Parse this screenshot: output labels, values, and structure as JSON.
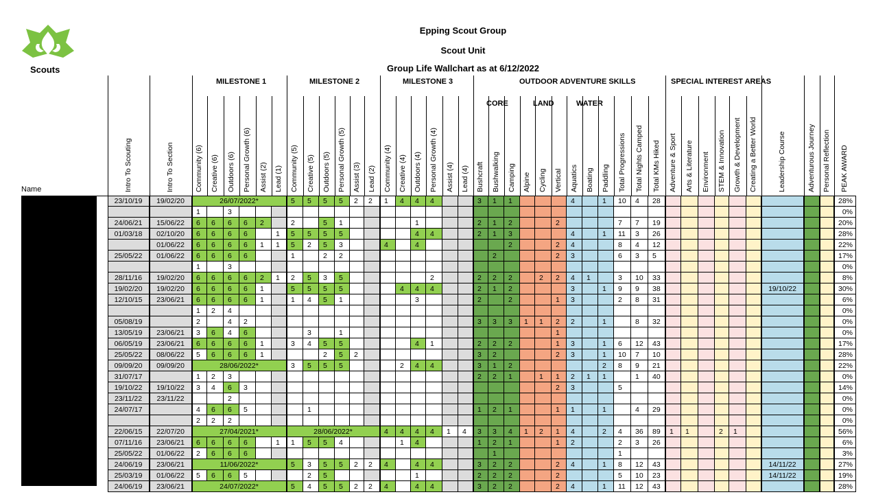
{
  "header": {
    "org": "Epping Scout Group",
    "unit": "Scout Unit",
    "title": "Group Life Wallchart as at 6/12/2022",
    "logo_text": "Scouts"
  },
  "groups": {
    "m1": "MILESTONE 1",
    "m2": "MILESTONE 2",
    "m3": "MILESTONE 3",
    "oas": "OUTDOOR ADVENTURE SKILLS",
    "sia": "SPECIAL INTEREST AREAS",
    "core": "CORE",
    "land": "LAND",
    "water": "WATER"
  },
  "name_header": "Name",
  "colors": {
    "green": "#92d050",
    "dark_green": "#6aa84f",
    "orange": "#f4a582",
    "blue": "#b9dcea",
    "pink": "#fbe1e1",
    "yellow": "#fff3c8",
    "grey": "#dcdcdc"
  },
  "columns": [
    "Intro To Scouting",
    "Intro To Section",
    "Community (6)",
    "Creative (6)",
    "Outdoors (6)",
    "Personal Growth (6)",
    "Assist (2)",
    "Lead (1)",
    "Community (5)",
    "Creative (5)",
    "Outdoors (5)",
    "Personal Growth (5)",
    "Assist (3)",
    "Lead (2)",
    "Community (4)",
    "Creative (4)",
    "Outdoors (4)",
    "Personal Growth (4)",
    "Assist (4)",
    "Lead (4)",
    "Bushcraft",
    "Bushwalking",
    "Camping",
    "Alpine",
    "Cycling",
    "Vertical",
    "Aquatics",
    "Boating",
    "Paddling",
    "Total Progressions",
    "Total Nights Camped",
    "Total KMs Hiked",
    "Adventure & Sport",
    "Arts & Literature",
    "Environment",
    "STEM & Innovation",
    "Growth & Development",
    "Creating a Better World",
    "Leadership Course",
    "Adventurous Journey",
    "Personal Reflection",
    "PEAK AWARD"
  ],
  "rows": [
    [
      "23/10/19",
      "19/02/20",
      "",
      "",
      "",
      "",
      "",
      "",
      "5",
      "5",
      "5",
      "5",
      "2",
      "2",
      "1",
      "4",
      "4",
      "4",
      "",
      "",
      "3",
      "1",
      "1",
      "",
      "",
      "",
      "4",
      "",
      "1",
      "10",
      "4",
      "28",
      "",
      "",
      "",
      "",
      "",
      "",
      "",
      "",
      "",
      "28%"
    ],
    [
      "",
      "",
      "1",
      "",
      "3",
      "",
      "",
      "",
      "",
      "",
      "",
      "",
      "",
      "",
      "",
      "",
      "",
      "",
      "",
      "",
      "",
      "",
      "",
      "",
      "",
      "",
      "",
      "",
      "",
      "",
      "",
      "",
      "",
      "",
      "",
      "",
      "",
      "",
      "",
      "",
      "",
      "0%"
    ],
    [
      "24/06/21",
      "15/06/22",
      "6",
      "6",
      "6",
      "6",
      "2",
      "",
      "2",
      "",
      "5",
      "1",
      "",
      "",
      "",
      "",
      "1",
      "",
      "",
      "",
      "2",
      "1",
      "2",
      "",
      "",
      "2",
      "",
      "",
      "",
      "7",
      "7",
      "19",
      "",
      "",
      "",
      "",
      "",
      "",
      "",
      "",
      "",
      "20%"
    ],
    [
      "01/03/18",
      "02/10/20",
      "6",
      "6",
      "6",
      "6",
      "",
      "1",
      "5",
      "5",
      "5",
      "5",
      "",
      "",
      "",
      "",
      "4",
      "4",
      "",
      "",
      "2",
      "1",
      "3",
      "",
      "",
      "",
      "4",
      "",
      "1",
      "11",
      "3",
      "26",
      "",
      "",
      "",
      "",
      "",
      "",
      "",
      "",
      "",
      "28%"
    ],
    [
      "",
      "01/06/22",
      "6",
      "6",
      "6",
      "6",
      "1",
      "1",
      "5",
      "2",
      "5",
      "3",
      "",
      "",
      "4",
      "",
      "4",
      "",
      "",
      "",
      "",
      "",
      "2",
      "",
      "",
      "2",
      "4",
      "",
      "",
      "8",
      "4",
      "12",
      "",
      "",
      "",
      "",
      "",
      "",
      "",
      "",
      "",
      "22%"
    ],
    [
      "25/05/22",
      "01/06/22",
      "6",
      "6",
      "6",
      "6",
      "",
      "",
      "1",
      "",
      "2",
      "2",
      "",
      "",
      "",
      "",
      "",
      "",
      "",
      "",
      "",
      "2",
      "",
      "",
      "",
      "2",
      "3",
      "",
      "",
      "6",
      "3",
      "5",
      "",
      "",
      "",
      "",
      "",
      "",
      "",
      "",
      "",
      "17%"
    ],
    [
      "",
      "",
      "1",
      "",
      "3",
      "",
      "",
      "",
      "",
      "",
      "",
      "",
      "",
      "",
      "",
      "",
      "",
      "",
      "",
      "",
      "",
      "",
      "",
      "",
      "",
      "",
      "",
      "",
      "",
      "",
      "",
      "",
      "",
      "",
      "",
      "",
      "",
      "",
      "",
      "",
      "",
      "0%"
    ],
    [
      "28/11/16",
      "19/02/20",
      "6",
      "6",
      "6",
      "6",
      "2",
      "1",
      "2",
      "5",
      "3",
      "5",
      "",
      "",
      "",
      "",
      "",
      "2",
      "",
      "",
      "2",
      "2",
      "2",
      "",
      "2",
      "2",
      "4",
      "1",
      "",
      "3",
      "10",
      "33",
      "",
      "",
      "",
      "",
      "",
      "",
      "",
      "",
      "",
      "8%"
    ],
    [
      "19/02/20",
      "19/02/20",
      "6",
      "6",
      "6",
      "6",
      "1",
      "",
      "5",
      "5",
      "5",
      "5",
      "",
      "",
      "",
      "4",
      "4",
      "4",
      "",
      "",
      "2",
      "1",
      "2",
      "",
      "",
      "",
      "3",
      "",
      "1",
      "9",
      "9",
      "38",
      "",
      "",
      "",
      "",
      "",
      "",
      "19/10/22",
      "",
      "",
      "30%"
    ],
    [
      "12/10/15",
      "23/06/21",
      "6",
      "6",
      "6",
      "6",
      "1",
      "",
      "1",
      "4",
      "5",
      "1",
      "",
      "",
      "",
      "",
      "3",
      "",
      "",
      "",
      "2",
      "",
      "2",
      "",
      "",
      "1",
      "3",
      "",
      "",
      "2",
      "8",
      "31",
      "",
      "",
      "",
      "",
      "",
      "",
      "",
      "",
      "",
      "6%"
    ],
    [
      "",
      "",
      "1",
      "2",
      "4",
      "",
      "",
      "",
      "",
      "",
      "",
      "",
      "",
      "",
      "",
      "",
      "",
      "",
      "",
      "",
      "",
      "",
      "",
      "",
      "",
      "",
      "",
      "",
      "",
      "",
      "",
      "",
      "",
      "",
      "",
      "",
      "",
      "",
      "",
      "",
      "",
      "0%"
    ],
    [
      "05/08/19",
      "",
      "2",
      "",
      "4",
      "2",
      "",
      "",
      "",
      "",
      "",
      "",
      "",
      "",
      "",
      "",
      "",
      "",
      "",
      "",
      "3",
      "3",
      "3",
      "1",
      "1",
      "2",
      "2",
      "",
      "1",
      "",
      "8",
      "32",
      "",
      "",
      "",
      "",
      "",
      "",
      "",
      "",
      "",
      "0%"
    ],
    [
      "13/05/19",
      "23/06/21",
      "3",
      "6",
      "4",
      "6",
      "",
      "",
      "",
      "3",
      "",
      "1",
      "",
      "",
      "",
      "",
      "",
      "",
      "",
      "",
      "",
      "",
      "",
      "",
      "",
      "1",
      "",
      "",
      "",
      "",
      "",
      "",
      "",
      "",
      "",
      "",
      "",
      "",
      "",
      "",
      "",
      "0%"
    ],
    [
      "06/05/19",
      "23/06/21",
      "6",
      "6",
      "6",
      "6",
      "1",
      "",
      "3",
      "4",
      "5",
      "5",
      "",
      "",
      "",
      "",
      "4",
      "1",
      "",
      "",
      "2",
      "2",
      "2",
      "",
      "",
      "1",
      "3",
      "",
      "1",
      "6",
      "12",
      "43",
      "",
      "",
      "",
      "",
      "",
      "",
      "",
      "",
      "",
      "17%"
    ],
    [
      "25/05/22",
      "08/06/22",
      "5",
      "6",
      "6",
      "6",
      "1",
      "",
      "",
      "",
      "2",
      "5",
      "2",
      "",
      "",
      "",
      "",
      "",
      "",
      "",
      "3",
      "2",
      "",
      "",
      "",
      "2",
      "3",
      "",
      "1",
      "10",
      "7",
      "10",
      "",
      "",
      "",
      "",
      "",
      "",
      "",
      "",
      "",
      "28%"
    ],
    [
      "09/09/20",
      "09/09/20",
      "",
      "",
      "",
      "",
      "",
      "",
      "3",
      "5",
      "5",
      "5",
      "",
      "",
      "",
      "2",
      "4",
      "4",
      "",
      "",
      "3",
      "1",
      "2",
      "",
      "",
      "",
      "",
      "",
      "2",
      "8",
      "9",
      "21",
      "",
      "",
      "",
      "",
      "",
      "",
      "",
      "",
      "",
      "22%"
    ],
    [
      "31/07/17",
      "",
      "1",
      "2",
      "3",
      "",
      "",
      "",
      "",
      "",
      "",
      "",
      "",
      "",
      "",
      "",
      "",
      "",
      "",
      "",
      "2",
      "2",
      "1",
      "",
      "1",
      "1",
      "2",
      "1",
      "1",
      "",
      "1",
      "40",
      "",
      "",
      "",
      "",
      "",
      "",
      "",
      "",
      "",
      "0%"
    ],
    [
      "19/10/22",
      "19/10/22",
      "3",
      "4",
      "6",
      "3",
      "",
      "",
      "",
      "",
      "",
      "",
      "",
      "",
      "",
      "",
      "",
      "",
      "",
      "",
      "",
      "",
      "",
      "",
      "",
      "2",
      "3",
      "",
      "",
      "5",
      "",
      "",
      "",
      "",
      "",
      "",
      "",
      "",
      "",
      "",
      "",
      "14%"
    ],
    [
      "23/11/22",
      "23/11/22",
      "",
      "",
      "2",
      "",
      "",
      "",
      "",
      "",
      "",
      "",
      "",
      "",
      "",
      "",
      "",
      "",
      "",
      "",
      "",
      "",
      "",
      "",
      "",
      "",
      "",
      "",
      "",
      "",
      "",
      "",
      "",
      "",
      "",
      "",
      "",
      "",
      "",
      "",
      "",
      "0%"
    ],
    [
      "24/07/17",
      "",
      "4",
      "6",
      "6",
      "5",
      "",
      "",
      "",
      "1",
      "",
      "",
      "",
      "",
      "",
      "",
      "",
      "",
      "",
      "",
      "1",
      "2",
      "1",
      "",
      "",
      "1",
      "1",
      "",
      "1",
      "",
      "4",
      "29",
      "",
      "",
      "",
      "",
      "",
      "",
      "",
      "",
      "",
      "0%"
    ],
    [
      "",
      "",
      "2",
      "2",
      "2",
      "",
      "",
      "",
      "",
      "",
      "",
      "",
      "",
      "",
      "",
      "",
      "",
      "",
      "",
      "",
      "",
      "",
      "",
      "",
      "",
      "",
      "",
      "",
      "",
      "",
      "",
      "",
      "",
      "",
      "",
      "",
      "",
      "",
      "",
      "",
      "",
      "0%"
    ],
    [
      "22/06/15",
      "22/07/20",
      "",
      "",
      "",
      "",
      "",
      "",
      "",
      "",
      "",
      "",
      "",
      "",
      "4",
      "4",
      "4",
      "4",
      "1",
      "4",
      "3",
      "3",
      "4",
      "1",
      "2",
      "1",
      "4",
      "",
      "2",
      "4",
      "36",
      "89",
      "1",
      "1",
      "",
      "2",
      "1",
      "",
      "",
      "",
      "",
      "56%"
    ],
    [
      "07/11/16",
      "23/06/21",
      "6",
      "6",
      "6",
      "6",
      "",
      "1",
      "1",
      "5",
      "5",
      "4",
      "",
      "",
      "",
      "1",
      "4",
      "",
      "",
      "",
      "1",
      "2",
      "1",
      "",
      "",
      "1",
      "2",
      "",
      "",
      "2",
      "3",
      "26",
      "",
      "",
      "",
      "",
      "",
      "",
      "",
      "",
      "",
      "6%"
    ],
    [
      "25/05/22",
      "01/06/22",
      "2",
      "6",
      "6",
      "6",
      "",
      "",
      "",
      "",
      "",
      "",
      "",
      "",
      "",
      "",
      "",
      "",
      "",
      "",
      "",
      "1",
      "",
      "",
      "",
      "",
      "",
      "",
      "",
      "1",
      "",
      "",
      "",
      "",
      "",
      "",
      "",
      "",
      "",
      "",
      "",
      "3%"
    ],
    [
      "24/06/19",
      "23/06/21",
      "",
      "",
      "",
      "",
      "",
      "",
      "5",
      "3",
      "5",
      "5",
      "2",
      "2",
      "4",
      "",
      "4",
      "4",
      "",
      "",
      "3",
      "2",
      "2",
      "",
      "",
      "2",
      "4",
      "",
      "1",
      "8",
      "12",
      "43",
      "",
      "",
      "",
      "",
      "",
      "",
      "14/11/22",
      "",
      "",
      "27%"
    ],
    [
      "25/03/19",
      "01/06/22",
      "5",
      "6",
      "6",
      "5",
      "",
      "",
      "",
      "2",
      "5",
      "",
      "",
      "",
      "",
      "",
      "1",
      "",
      "",
      "",
      "2",
      "2",
      "2",
      "",
      "",
      "2",
      "",
      "",
      "",
      "5",
      "10",
      "23",
      "",
      "",
      "",
      "",
      "",
      "",
      "14/11/22",
      "",
      "",
      "19%"
    ],
    [
      "24/06/19",
      "23/06/21",
      "",
      "",
      "",
      "",
      "",
      "",
      "5",
      "4",
      "5",
      "5",
      "2",
      "2",
      "4",
      "",
      "4",
      "4",
      "",
      "",
      "3",
      "2",
      "2",
      "",
      "",
      "2",
      "4",
      "",
      "1",
      "11",
      "12",
      "43",
      "",
      "",
      "",
      "",
      "",
      "",
      "",
      "",
      "",
      "28%"
    ]
  ],
  "merged": [
    {
      "row": 0,
      "from": 2,
      "to": 7,
      "text": "26/07/2022*"
    },
    {
      "row": 15,
      "from": 2,
      "to": 7,
      "text": "28/06/2022*"
    },
    {
      "row": 21,
      "from": 2,
      "to": 7,
      "text": "27/04/2021*"
    },
    {
      "row": 21,
      "from": 8,
      "to": 13,
      "text": "28/06/2022*"
    },
    {
      "row": 24,
      "from": 2,
      "to": 7,
      "text": "11/06/2022*"
    },
    {
      "row": 26,
      "from": 2,
      "to": 7,
      "text": "24/07/2022*"
    }
  ]
}
